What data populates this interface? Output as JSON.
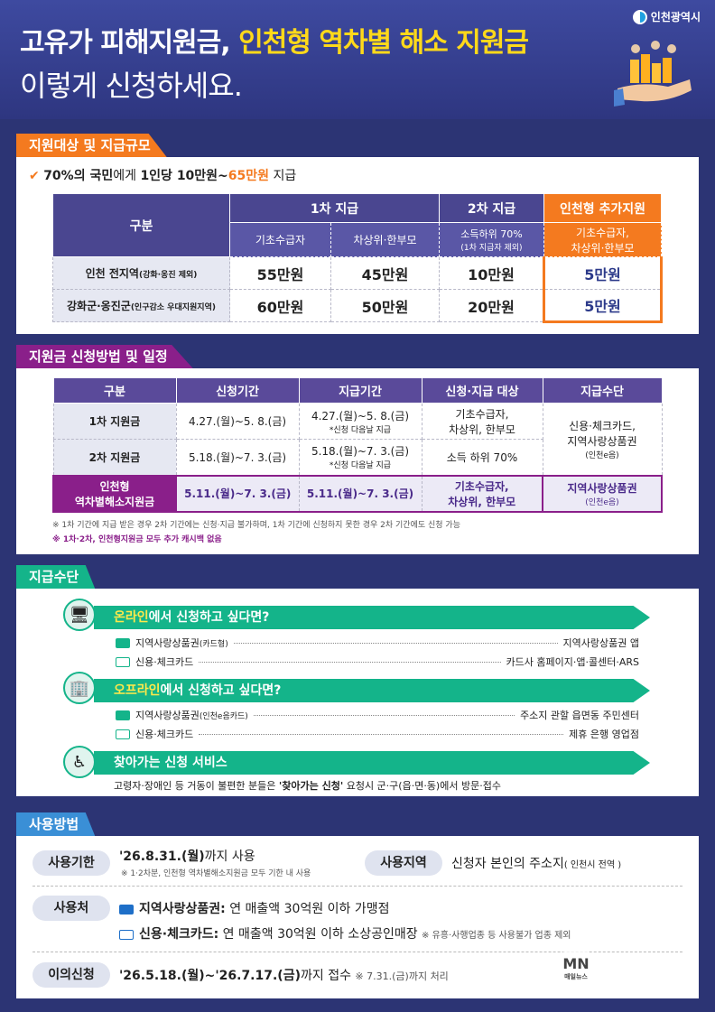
{
  "header": {
    "title_plain": "고유가 피해지원금, ",
    "title_highlight": "인천형 역차별 해소 지원금",
    "subtitle": "이렇게 신청하세요.",
    "logo_text": "인천광역시"
  },
  "section1": {
    "tab": "지원대상 및 지급규모",
    "headline_a": "70%의 국민",
    "headline_b": "에게 ",
    "headline_c": "1인당 10만원~",
    "headline_d": "65만원",
    "headline_e": " 지급",
    "col_gubun": "구분",
    "col_first": "1차 지급",
    "col_second": "2차 지급",
    "col_extra": "인천형 추가지원",
    "sub_basic": "기초수급자",
    "sub_near": "차상위·한부모",
    "sub_second_a": "소득하위 70%",
    "sub_second_b": "(1차 지급자 제외)",
    "sub_extra_a": "기초수급자,",
    "sub_extra_b": "차상위·한부모",
    "rows": [
      {
        "name": "인천 전지역",
        "note": "(강화·옹진 제외)",
        "v1": "55만원",
        "v2": "45만원",
        "v3": "10만원",
        "v4": "5만원"
      },
      {
        "name": "강화군·옹진군",
        "note": "(인구감소 우대지원지역)",
        "v1": "60만원",
        "v2": "50만원",
        "v3": "20만원",
        "v4": "5만원"
      }
    ]
  },
  "section2": {
    "tab": "지원금 신청방법 및 일정",
    "h_gubun": "구분",
    "h_apply": "신청기간",
    "h_pay": "지급기간",
    "h_target": "신청·지급 대상",
    "h_means": "지급수단",
    "r1_name": "1차 지원금",
    "r1_apply": "4.27.(월)~5. 8.(금)",
    "r1_pay": "4.27.(월)~5. 8.(금)",
    "r1_pay_note": "*신청 다음날 지급",
    "r1_target_a": "기초수급자,",
    "r1_target_b": "차상위, 한부모",
    "r2_name": "2차 지원금",
    "r2_apply": "5.18.(월)~7. 3.(금)",
    "r2_pay": "5.18.(월)~7. 3.(금)",
    "r2_pay_note": "*신청 다음날 지급",
    "r2_target": "소득 하위 70%",
    "means_a": "신용·체크카드,",
    "means_b": "지역사랑상품권",
    "means_c": "(인천e음)",
    "r3_name_a": "인천형",
    "r3_name_b": "역차별해소지원금",
    "r3_apply": "5.11.(월)~7. 3.(금)",
    "r3_pay": "5.11.(월)~7. 3.(금)",
    "r3_target_a": "기초수급자,",
    "r3_target_b": "차상위, 한부모",
    "r3_means_a": "지역사랑상품권",
    "r3_means_b": "(인천e음)",
    "note1": "※ 1차 기간에 지급 받은 경우 2차 기간에는 신청·지급 불가하며, 1차 기간에 신청하지 못한 경우 2차 기간에도 신청 가능",
    "note2": "※ 1차·2차, 인천형지원금 모두 추가 캐시백 없음"
  },
  "section3": {
    "tab": "지급수단",
    "online_hl": "온라인",
    "online_rest": "에서 신청하고 싶다면?",
    "online_items": [
      {
        "left": "지역사랑상품권",
        "left_small": "(카드형)",
        "right": "지역사랑상품권 앱"
      },
      {
        "left": "신용·체크카드",
        "left_small": "",
        "right": "카드사 홈페이지·앱·콜센터·ARS"
      }
    ],
    "offline_hl": "오프라인",
    "offline_rest": "에서 신청하고 싶다면?",
    "offline_items": [
      {
        "left": "지역사랑상품권",
        "left_small": "(인천e음카드)",
        "right": "주소지 관할 읍면동 주민센터"
      },
      {
        "left": "신용·체크카드",
        "left_small": "",
        "right": "제휴 은행 영업점"
      }
    ],
    "visit_title": "찾아가는 신청 서비스",
    "visit_a": "고령자·장애인 등 거동이 불편한 분들은 ",
    "visit_b": "'찾아가는 신청'",
    "visit_c": " 요청시 군·구(읍·면·동)에서 방문·접수"
  },
  "section4": {
    "tab": "사용방법",
    "period_label": "사용기한",
    "period_value": "'26.8.31.(월)",
    "period_rest": "까지 사용",
    "period_note": "※ 1·2차분, 인천형 역차별해소지원금 모두 기한 내 사용",
    "area_label": "사용지역",
    "area_value": "신청자 본인의 주소지",
    "area_note": "( 인천시 전역 )",
    "place_label": "사용처",
    "place1_b": "지역사랑상품권:",
    "place1_rest": " 연 매출액 30억원 이하 가맹점",
    "place2_b": "신용·체크카드:",
    "place2_rest": " 연 매출액 30억원 이하 소상공인매장",
    "place2_note": "※ 유흥·사행업종 등 사용불가 업종 제외",
    "objection_label": "이의신청",
    "objection_value": "'26.5.18.(월)~'26.7.17.(금)",
    "objection_rest": "까지 접수",
    "objection_note": "※ 7.31.(금)까지 처리"
  },
  "watermark": {
    "mark": "MN",
    "mark_sub": "매일뉴스",
    "text": "매일뉴스"
  },
  "colors": {
    "navy": "#2e3680",
    "orange": "#f47a1f",
    "purple": "#8a1f8a",
    "green": "#14b48a",
    "yellow": "#ffd91a"
  }
}
